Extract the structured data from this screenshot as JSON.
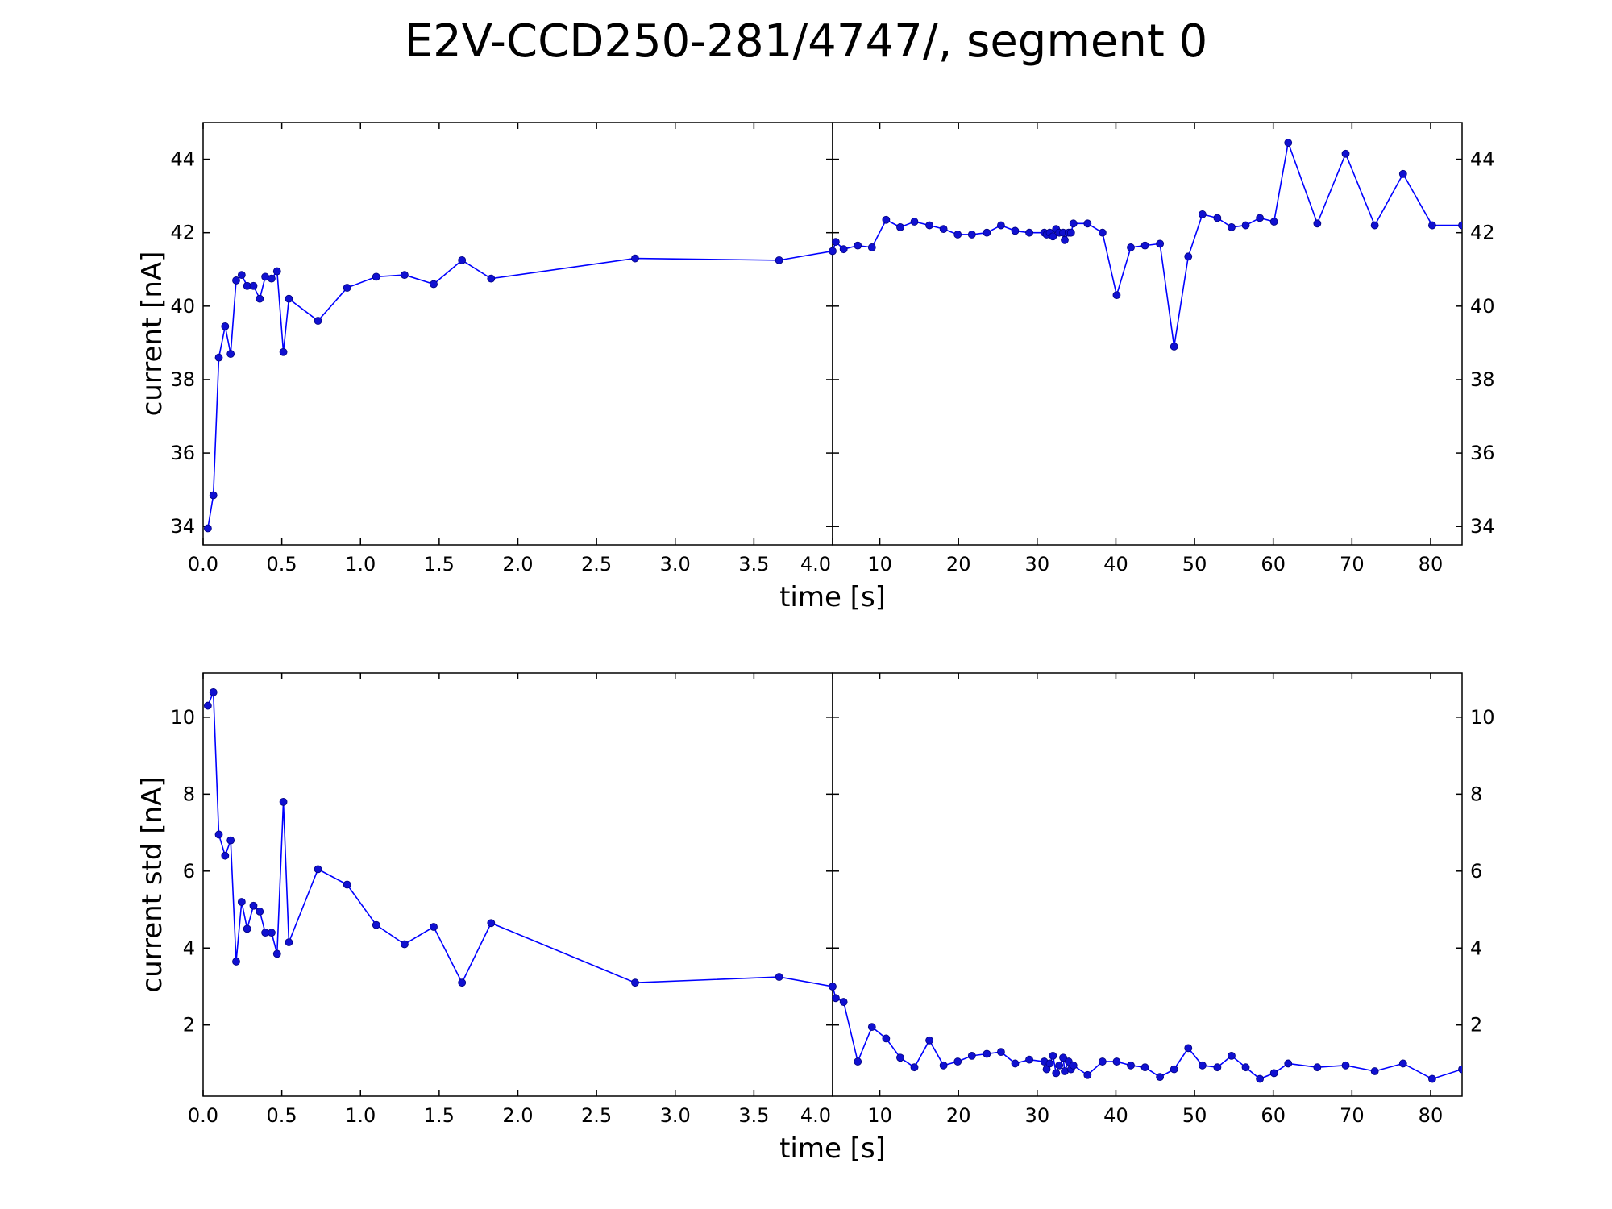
{
  "chart_data": {
    "type": "line",
    "title": "E2V-CCD250-281/4747/, segment 0",
    "series_color": "#0000ff",
    "marker_fill": "#1010d0",
    "panels": [
      {
        "ylabel": "current [nA]",
        "xlabel": "time [s]",
        "ylim": [
          33.5,
          45.0
        ],
        "yticks": [
          34,
          36,
          38,
          40,
          42,
          44
        ],
        "ytick_labels": [
          "34",
          "36",
          "38",
          "40",
          "42",
          "44"
        ],
        "left_axis": {
          "xlim": [
            0.0,
            4.0
          ],
          "xticks": [
            0.0,
            0.5,
            1.0,
            1.5,
            2.0,
            2.5,
            3.0,
            3.5,
            4.0
          ],
          "xtick_labels": [
            "0.0",
            "0.5",
            "1.0",
            "1.5",
            "2.0",
            "2.5",
            "3.0",
            "3.5",
            "4.0"
          ]
        },
        "right_axis": {
          "xlim": [
            4.0,
            84.0
          ],
          "xticks": [
            10,
            20,
            30,
            40,
            50,
            60,
            70,
            80
          ],
          "xtick_labels": [
            "10",
            "20",
            "30",
            "40",
            "50",
            "60",
            "70",
            "80"
          ]
        },
        "series": [
          {
            "x": [
              0.03,
              0.065,
              0.1,
              0.14,
              0.175,
              0.21,
              0.245,
              0.28,
              0.32,
              0.36,
              0.395,
              0.435,
              0.47,
              0.51,
              0.545,
              0.73,
              0.915,
              1.1,
              1.28,
              1.465,
              1.645,
              1.83,
              2.745,
              3.66,
              4.0,
              4.4,
              5.4,
              7.2,
              9.0,
              10.8,
              12.6,
              14.4,
              16.3,
              18.1,
              19.9,
              21.7,
              23.6,
              25.4,
              27.2,
              29.0,
              30.9,
              31.2,
              31.6,
              32.0,
              32.4,
              32.8,
              33.3,
              33.5,
              34.0,
              34.3,
              34.6,
              36.4,
              38.3,
              40.1,
              41.9,
              43.7,
              45.6,
              47.4,
              49.2,
              51.0,
              52.9,
              54.7,
              56.5,
              58.3,
              60.1,
              61.9,
              65.6,
              69.2,
              72.9,
              76.5,
              80.2,
              84.0
            ],
            "y": [
              33.95,
              34.85,
              38.6,
              39.45,
              38.7,
              40.7,
              40.85,
              40.55,
              40.55,
              40.2,
              40.8,
              40.75,
              40.95,
              38.75,
              40.2,
              39.6,
              40.5,
              40.8,
              40.85,
              40.6,
              41.25,
              40.75,
              41.3,
              41.25,
              41.5,
              41.75,
              41.55,
              41.65,
              41.6,
              42.35,
              42.15,
              42.3,
              42.2,
              42.1,
              41.95,
              41.95,
              42.0,
              42.2,
              42.05,
              42.0,
              42.0,
              41.95,
              42.0,
              41.9,
              42.1,
              42.0,
              42.0,
              41.8,
              42.0,
              42.0,
              42.25,
              42.25,
              42.0,
              40.3,
              41.6,
              41.65,
              41.7,
              38.9,
              41.35,
              42.5,
              42.4,
              42.15,
              42.2,
              42.4,
              42.3,
              44.45,
              42.25,
              44.15,
              42.2,
              43.6,
              42.2,
              42.2
            ]
          }
        ]
      },
      {
        "ylabel": "current std [nA]",
        "xlabel": "time [s]",
        "ylim": [
          0.15,
          11.15
        ],
        "yticks": [
          2,
          4,
          6,
          8,
          10
        ],
        "ytick_labels": [
          "2",
          "4",
          "6",
          "8",
          "10"
        ],
        "left_axis": {
          "xlim": [
            0.0,
            4.0
          ],
          "xticks": [
            0.0,
            0.5,
            1.0,
            1.5,
            2.0,
            2.5,
            3.0,
            3.5,
            4.0
          ],
          "xtick_labels": [
            "0.0",
            "0.5",
            "1.0",
            "1.5",
            "2.0",
            "2.5",
            "3.0",
            "3.5",
            "4.0"
          ]
        },
        "right_axis": {
          "xlim": [
            4.0,
            84.0
          ],
          "xticks": [
            10,
            20,
            30,
            40,
            50,
            60,
            70,
            80
          ],
          "xtick_labels": [
            "10",
            "20",
            "30",
            "40",
            "50",
            "60",
            "70",
            "80"
          ]
        },
        "series": [
          {
            "x": [
              0.03,
              0.065,
              0.1,
              0.14,
              0.175,
              0.21,
              0.245,
              0.28,
              0.32,
              0.36,
              0.395,
              0.435,
              0.47,
              0.51,
              0.545,
              0.73,
              0.915,
              1.1,
              1.28,
              1.465,
              1.645,
              1.83,
              2.745,
              3.66,
              4.0,
              4.4,
              5.4,
              7.2,
              9.0,
              10.8,
              12.6,
              14.4,
              16.3,
              18.1,
              19.9,
              21.7,
              23.6,
              25.4,
              27.2,
              29.0,
              30.9,
              31.2,
              31.6,
              32.0,
              32.4,
              32.8,
              33.3,
              33.5,
              34.0,
              34.3,
              34.6,
              36.4,
              38.3,
              40.1,
              41.9,
              43.7,
              45.6,
              47.4,
              49.2,
              51.0,
              52.9,
              54.7,
              56.5,
              58.3,
              60.1,
              61.9,
              65.6,
              69.2,
              72.9,
              76.5,
              80.2,
              84.0
            ],
            "y": [
              10.3,
              10.65,
              6.95,
              6.4,
              6.8,
              3.65,
              5.2,
              4.5,
              5.1,
              4.95,
              4.4,
              4.4,
              3.85,
              7.8,
              4.15,
              6.05,
              5.65,
              4.6,
              4.1,
              4.55,
              3.1,
              4.65,
              3.1,
              3.25,
              3.0,
              2.7,
              2.6,
              1.05,
              1.95,
              1.65,
              1.15,
              0.9,
              1.6,
              0.95,
              1.05,
              1.2,
              1.25,
              1.3,
              1.0,
              1.1,
              1.05,
              0.85,
              1.0,
              1.2,
              0.75,
              0.95,
              1.15,
              0.8,
              1.05,
              0.85,
              0.95,
              0.7,
              1.05,
              1.05,
              0.95,
              0.9,
              0.65,
              0.85,
              1.4,
              0.95,
              0.9,
              1.2,
              0.9,
              0.6,
              0.75,
              1.0,
              0.9,
              0.95,
              0.8,
              1.0,
              0.6,
              0.85
            ]
          }
        ]
      }
    ]
  }
}
